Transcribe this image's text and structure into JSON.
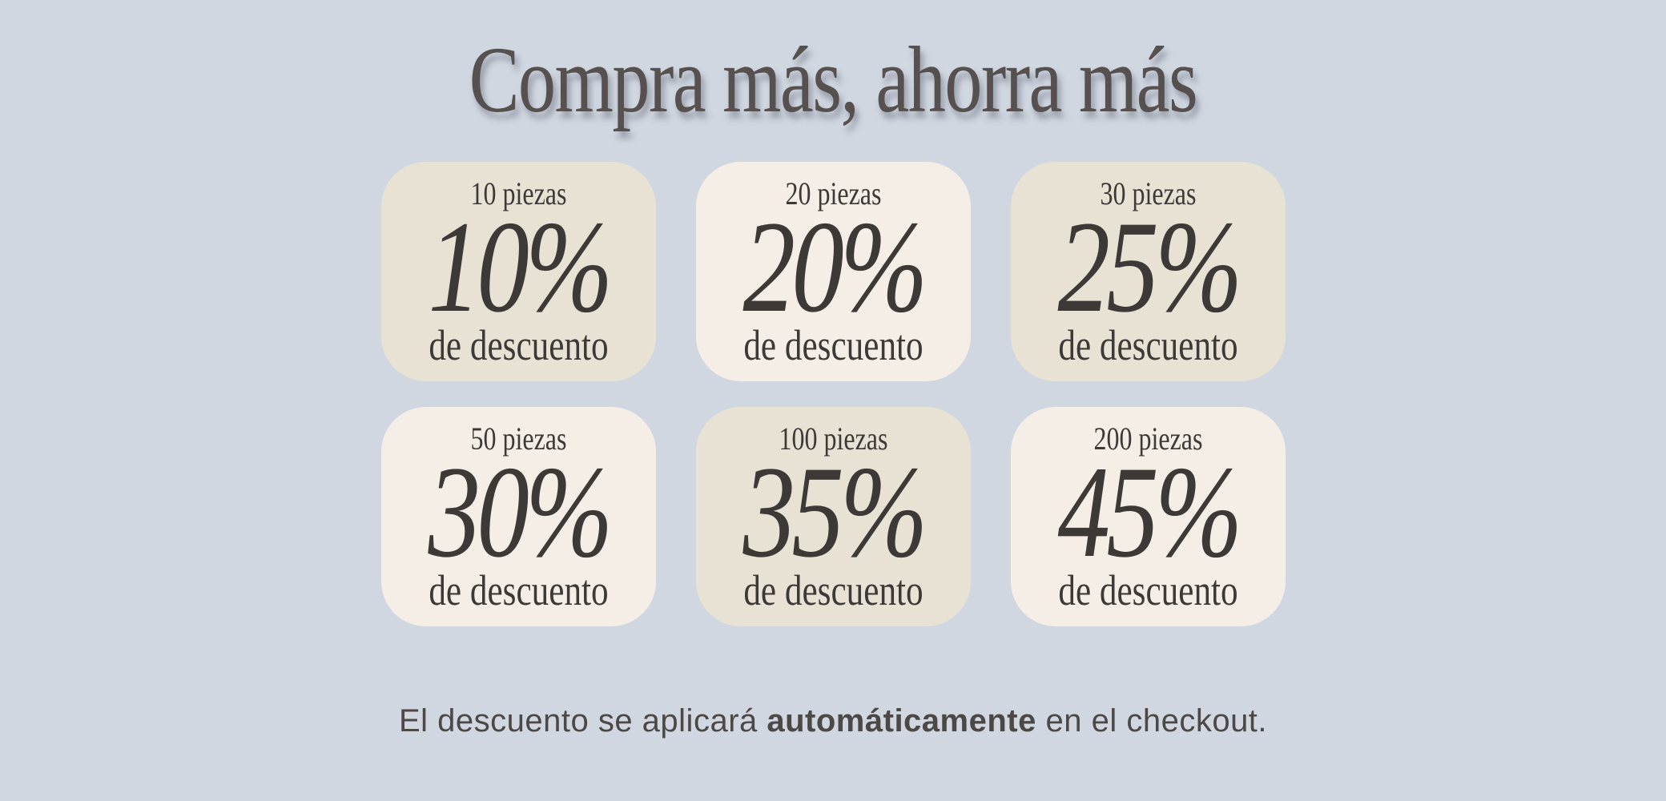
{
  "banner": {
    "title": "Compra más, ahorra más",
    "footer": {
      "prefix": "El descuento se aplicará ",
      "highlight": "automáticamente",
      "suffix": " en el checkout."
    }
  },
  "tiers": [
    {
      "quantity": "10 piezas",
      "discount": "10%",
      "caption": "de descuento",
      "variant": "beige"
    },
    {
      "quantity": "20 piezas",
      "discount": "20%",
      "caption": "de descuento",
      "variant": "cream"
    },
    {
      "quantity": "30 piezas",
      "discount": "25%",
      "caption": "de descuento",
      "variant": "beige"
    },
    {
      "quantity": "50 piezas",
      "discount": "30%",
      "caption": "de descuento",
      "variant": "cream"
    },
    {
      "quantity": "100 piezas",
      "discount": "35%",
      "caption": "de descuento",
      "variant": "beige"
    },
    {
      "quantity": "200 piezas",
      "discount": "45%",
      "caption": "de descuento",
      "variant": "cream"
    }
  ],
  "colors": {
    "background": "#d0d7e1",
    "card_beige": "#e8e2d5",
    "card_cream": "#f5eee7",
    "text_dark": "#3d3936",
    "title_color": "#56514e"
  }
}
